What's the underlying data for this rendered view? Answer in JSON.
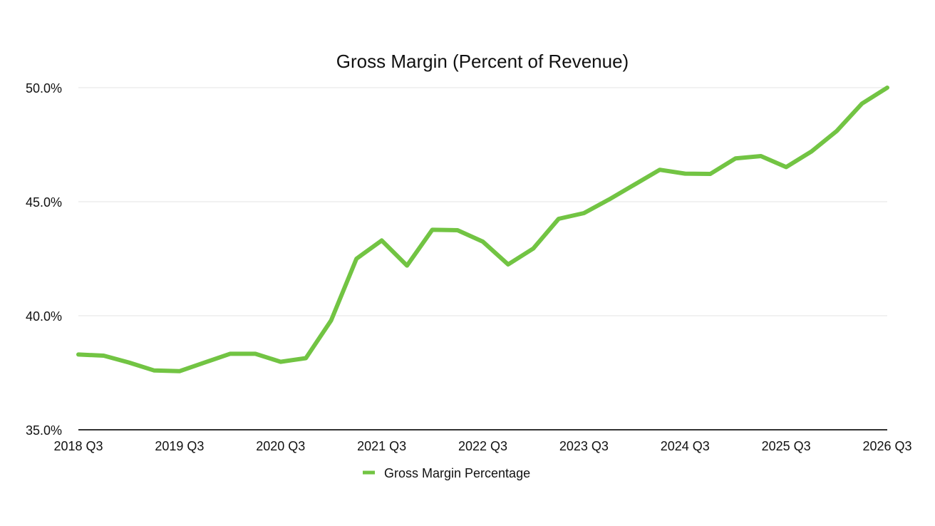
{
  "chart_data": {
    "type": "line",
    "title": "Gross Margin (Percent of Revenue)",
    "xlabel": "",
    "ylabel": "",
    "ylim": [
      35.0,
      50.0
    ],
    "yticks": [
      35.0,
      40.0,
      45.0,
      50.0
    ],
    "ytick_labels": [
      "35.0%",
      "40.0%",
      "45.0%",
      "50.0%"
    ],
    "xtick_labels": [
      "2018 Q3",
      "2019 Q3",
      "2020 Q3",
      "2021 Q3",
      "2022 Q3",
      "2023 Q3",
      "2024 Q3",
      "2025 Q3",
      "2026 Q3"
    ],
    "categories": [
      "2018 Q3",
      "2018 Q4",
      "2019 Q1",
      "2019 Q2",
      "2019 Q3",
      "2019 Q4",
      "2020 Q1",
      "2020 Q2",
      "2020 Q3",
      "2020 Q4",
      "2021 Q1",
      "2021 Q2",
      "2021 Q3",
      "2021 Q4",
      "2022 Q1",
      "2022 Q2",
      "2022 Q3",
      "2022 Q4",
      "2023 Q1",
      "2023 Q2",
      "2023 Q3",
      "2023 Q4",
      "2024 Q1",
      "2024 Q2",
      "2024 Q3",
      "2024 Q4",
      "2025 Q1",
      "2025 Q2",
      "2025 Q3",
      "2025 Q4",
      "2026 Q1",
      "2026 Q2",
      "2026 Q3"
    ],
    "grid": true,
    "legend_position": "bottom",
    "color": "#72c443",
    "series": [
      {
        "name": "Gross Margin Percentage",
        "values": [
          38.3,
          38.25,
          37.95,
          37.6,
          37.57,
          37.95,
          38.33,
          38.33,
          37.98,
          38.14,
          39.8,
          42.5,
          43.3,
          42.2,
          43.77,
          43.75,
          43.25,
          42.25,
          42.95,
          44.25,
          44.5,
          45.1,
          45.75,
          46.4,
          46.23,
          46.22,
          46.9,
          47.0,
          46.52,
          47.2,
          48.1,
          49.3,
          50.0
        ]
      }
    ]
  }
}
